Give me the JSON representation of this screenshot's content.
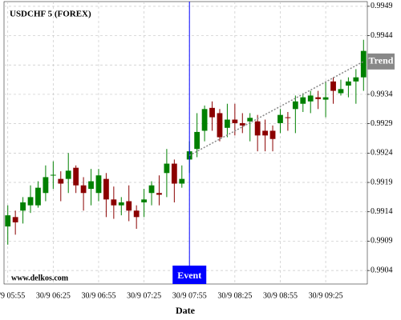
{
  "chart_data": {
    "type": "candlestick",
    "title": "USDCHF 5 (FOREX)",
    "watermark": "www.delkos.com",
    "x_label": "Date",
    "categories": [
      "30/9 05:55",
      null,
      null,
      null,
      null,
      null,
      "30/9 06:25",
      null,
      null,
      null,
      null,
      null,
      "30/9 06:55",
      null,
      null,
      null,
      null,
      null,
      "30/9 07:25",
      null,
      null,
      null,
      null,
      null,
      "30/9 07:55",
      null,
      null,
      null,
      null,
      null,
      "30/9 08:25",
      null,
      null,
      null,
      null,
      null,
      "30/9 08:55",
      null,
      null,
      null,
      null,
      null,
      "30/9 09:25",
      null,
      null,
      null,
      null,
      null
    ],
    "open": [
      0.99115,
      0.99131,
      0.99142,
      0.99151,
      0.99151,
      0.99172,
      0.99202,
      0.99196,
      0.99196,
      0.99215,
      0.99185,
      0.99179,
      0.99172,
      0.99196,
      0.99161,
      0.99151,
      0.99158,
      0.99142,
      0.99156,
      0.99172,
      0.99172,
      0.99206,
      0.99222,
      0.99188,
      0.99229,
      0.99247,
      0.99278,
      0.99317,
      0.99308,
      0.99283,
      0.99297,
      0.99291,
      0.99294,
      0.99294,
      0.99278,
      0.99278,
      0.99291,
      0.99301,
      0.99315,
      0.99324,
      0.99328,
      0.99335,
      0.99331,
      0.99362,
      0.99342,
      0.99355,
      0.99362,
      0.99369
    ],
    "high": [
      0.99151,
      0.99142,
      0.99165,
      0.99185,
      0.99192,
      0.99219,
      0.99226,
      0.99209,
      0.9924,
      0.99219,
      0.99199,
      0.99213,
      0.99213,
      0.99206,
      0.99183,
      0.99165,
      0.99185,
      0.99151,
      0.99179,
      0.99192,
      0.99202,
      0.99247,
      0.99229,
      0.99219,
      0.9926,
      0.99308,
      0.99321,
      0.99328,
      0.99315,
      0.99324,
      0.99324,
      0.99308,
      0.99308,
      0.99305,
      0.99297,
      0.99287,
      0.99315,
      0.9931,
      0.99338,
      0.99342,
      0.99346,
      0.99346,
      0.99362,
      0.99369,
      0.99365,
      0.99369,
      0.99383,
      0.99433
    ],
    "low": [
      0.99084,
      0.99101,
      0.9912,
      0.99138,
      0.99147,
      0.99158,
      0.99179,
      0.99158,
      0.99172,
      0.99172,
      0.99142,
      0.99151,
      0.99158,
      0.99131,
      0.99128,
      0.99134,
      0.99124,
      0.99111,
      0.99131,
      0.99151,
      0.99151,
      0.99165,
      0.99156,
      0.99181,
      0.99206,
      0.99233,
      0.9926,
      0.99278,
      0.9926,
      0.99267,
      0.9927,
      0.99274,
      0.9926,
      0.99243,
      0.99243,
      0.99243,
      0.99274,
      0.99278,
      0.99274,
      0.9931,
      0.99308,
      0.99315,
      0.99301,
      0.99324,
      0.99338,
      0.99335,
      0.99324,
      0.99346
    ],
    "close": [
      0.99134,
      0.99122,
      0.99156,
      0.99165,
      0.99181,
      0.99199,
      0.99203,
      0.99188,
      0.9921,
      0.99185,
      0.99172,
      0.99192,
      0.99202,
      0.99161,
      0.99151,
      0.99156,
      0.99142,
      0.99131,
      0.99161,
      0.99185,
      0.99169,
      0.99222,
      0.99188,
      0.99196,
      0.99243,
      0.99276,
      0.99315,
      0.99301,
      0.99267,
      0.99297,
      0.99291,
      0.99287,
      0.993,
      0.9927,
      0.9927,
      0.99264,
      0.99305,
      0.993,
      0.99328,
      0.99335,
      0.99338,
      0.99332,
      0.99335,
      0.99346,
      0.99349,
      0.99362,
      0.99369,
      0.99414
    ],
    "up_color": "#008000",
    "down_color": "#8b0000",
    "ylim": [
      0.99017,
      0.99498
    ],
    "yticks": [
      0.9904,
      0.9909,
      0.9914,
      0.9919,
      0.9924,
      0.9929,
      0.9934,
      0.9939,
      0.9944,
      0.9949
    ],
    "grid": true,
    "event": {
      "label": "Event",
      "index": 24,
      "color": "#0000ff"
    },
    "trend": {
      "label": "Trend",
      "index0": 24,
      "index1": 47,
      "y0": 0.99236,
      "y1": 0.99396,
      "color": "#888888"
    }
  }
}
